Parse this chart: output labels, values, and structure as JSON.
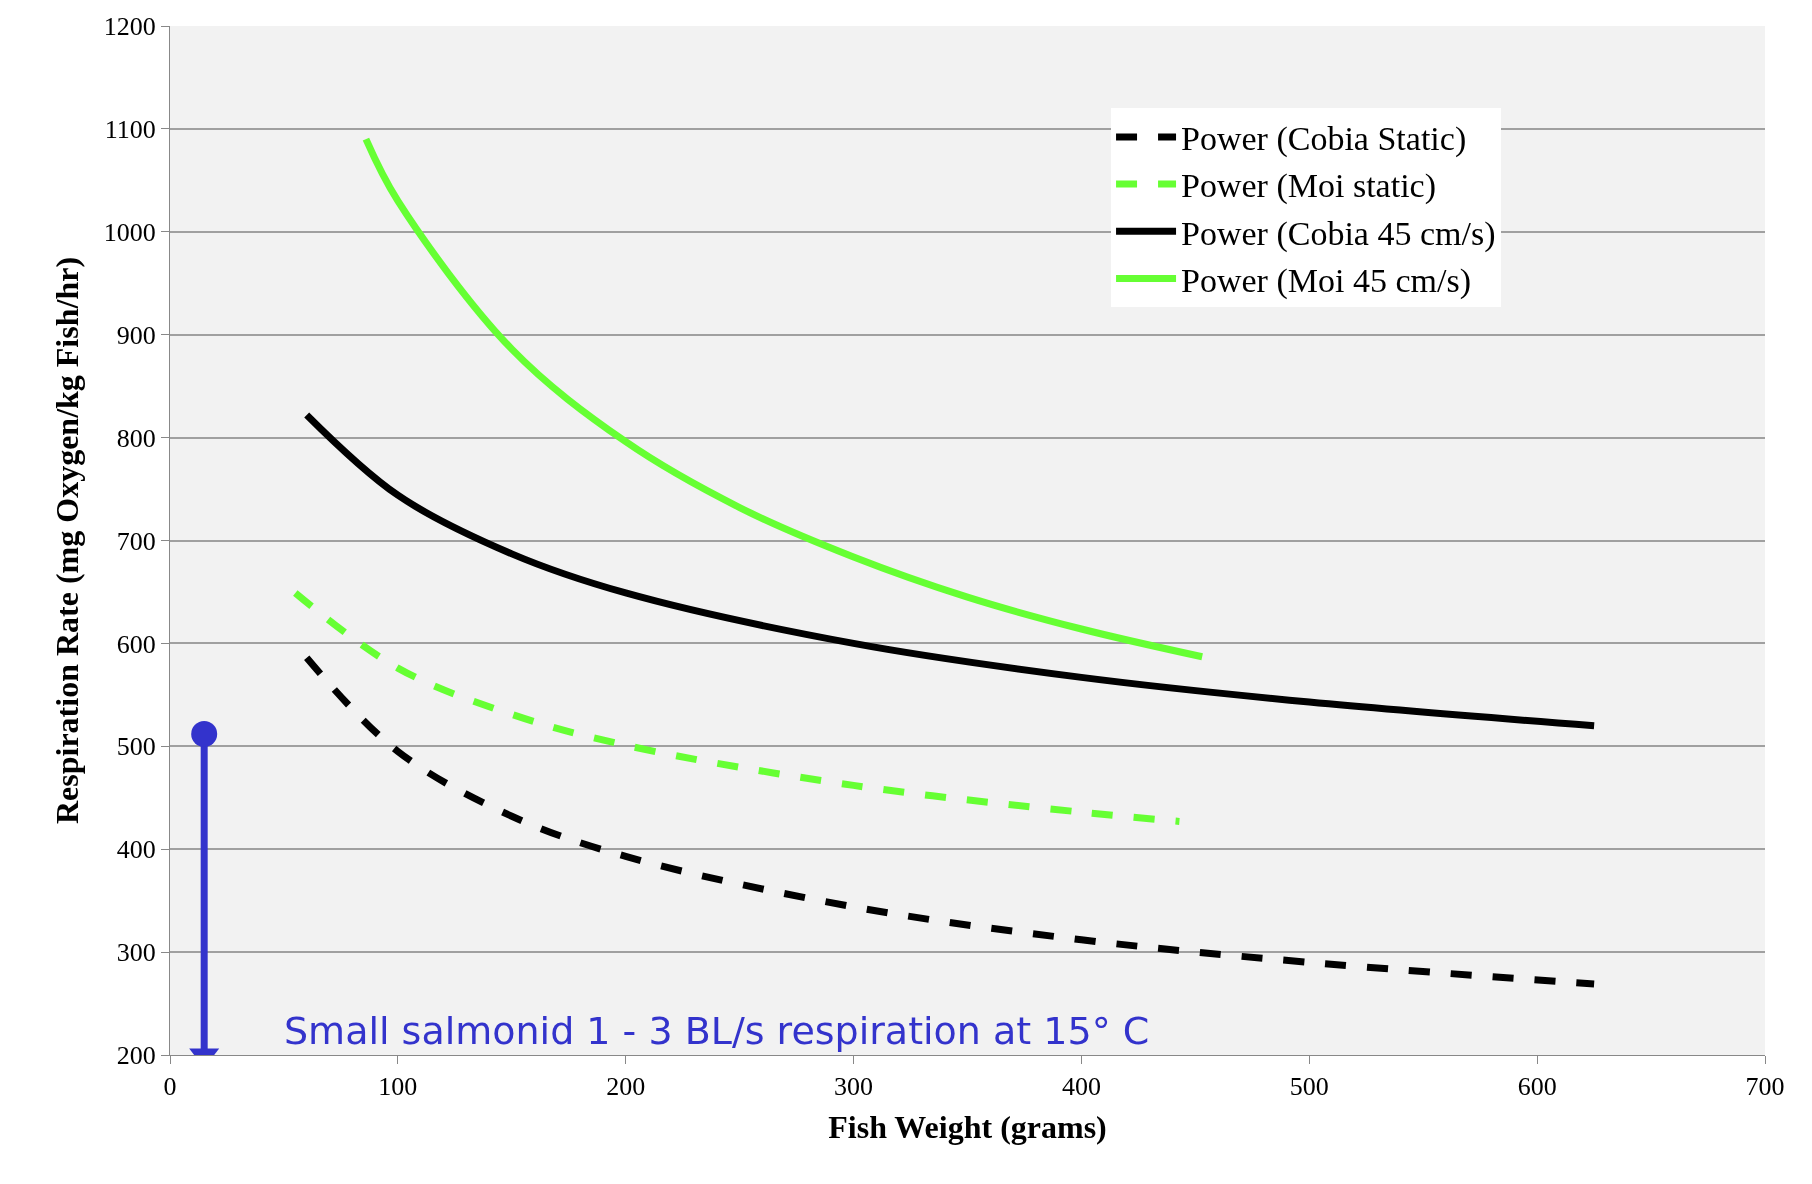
{
  "chart_data": {
    "type": "line",
    "xlabel": "Fish Weight (grams)",
    "ylabel": "Respiration Rate (mg Oxygen/kg Fish/hr)",
    "xlim": [
      0,
      700
    ],
    "xticks": [
      0,
      100,
      200,
      300,
      400,
      500,
      600,
      700
    ],
    "ylim": [
      200,
      1200
    ],
    "yticks": [
      200,
      300,
      400,
      500,
      600,
      700,
      800,
      900,
      1000,
      1100,
      1200
    ],
    "grid": "y",
    "legend": "top right",
    "marker": "none",
    "series": [
      {
        "name": "Power (Cobia Static)",
        "color": "#000000",
        "line_style": "dashed",
        "x": [
          60,
          100,
          150,
          200,
          300,
          400,
          500,
          625
        ],
        "values": [
          586,
          495,
          432,
          393,
          344,
          312,
          290,
          269
        ]
      },
      {
        "name": "Power (Moi static)",
        "color": "#66ff33",
        "line_style": "dashed",
        "x": [
          55,
          100,
          150,
          200,
          300,
          400,
          443
        ],
        "values": [
          649,
          576,
          531,
          501,
          462,
          436,
          427
        ]
      },
      {
        "name": "Power (Cobia 45 cm/s)",
        "color": "#000000",
        "line_style": "solid",
        "x": [
          60,
          100,
          150,
          200,
          300,
          400,
          500,
          625
        ],
        "values": [
          822,
          744,
          687,
          649,
          600,
          567,
          543,
          520
        ]
      },
      {
        "name": "Power (Moi 45 cm/s)",
        "color": "#66ff33",
        "line_style": "solid",
        "x": [
          86,
          100,
          150,
          200,
          250,
          300,
          350,
          400,
          453
        ],
        "values": [
          1090,
          1030,
          886,
          796,
          732,
          684,
          645,
          614,
          587
        ]
      },
      {
        "color": "#3333cc",
        "line_style": "solid",
        "marker": [
          "circle",
          "triangle"
        ],
        "x": [
          15,
          15
        ],
        "values": [
          512,
          200
        ]
      }
    ],
    "annotations": [
      "Small salmonid 1 - 3 BL/s respiration at 15° C"
    ]
  }
}
